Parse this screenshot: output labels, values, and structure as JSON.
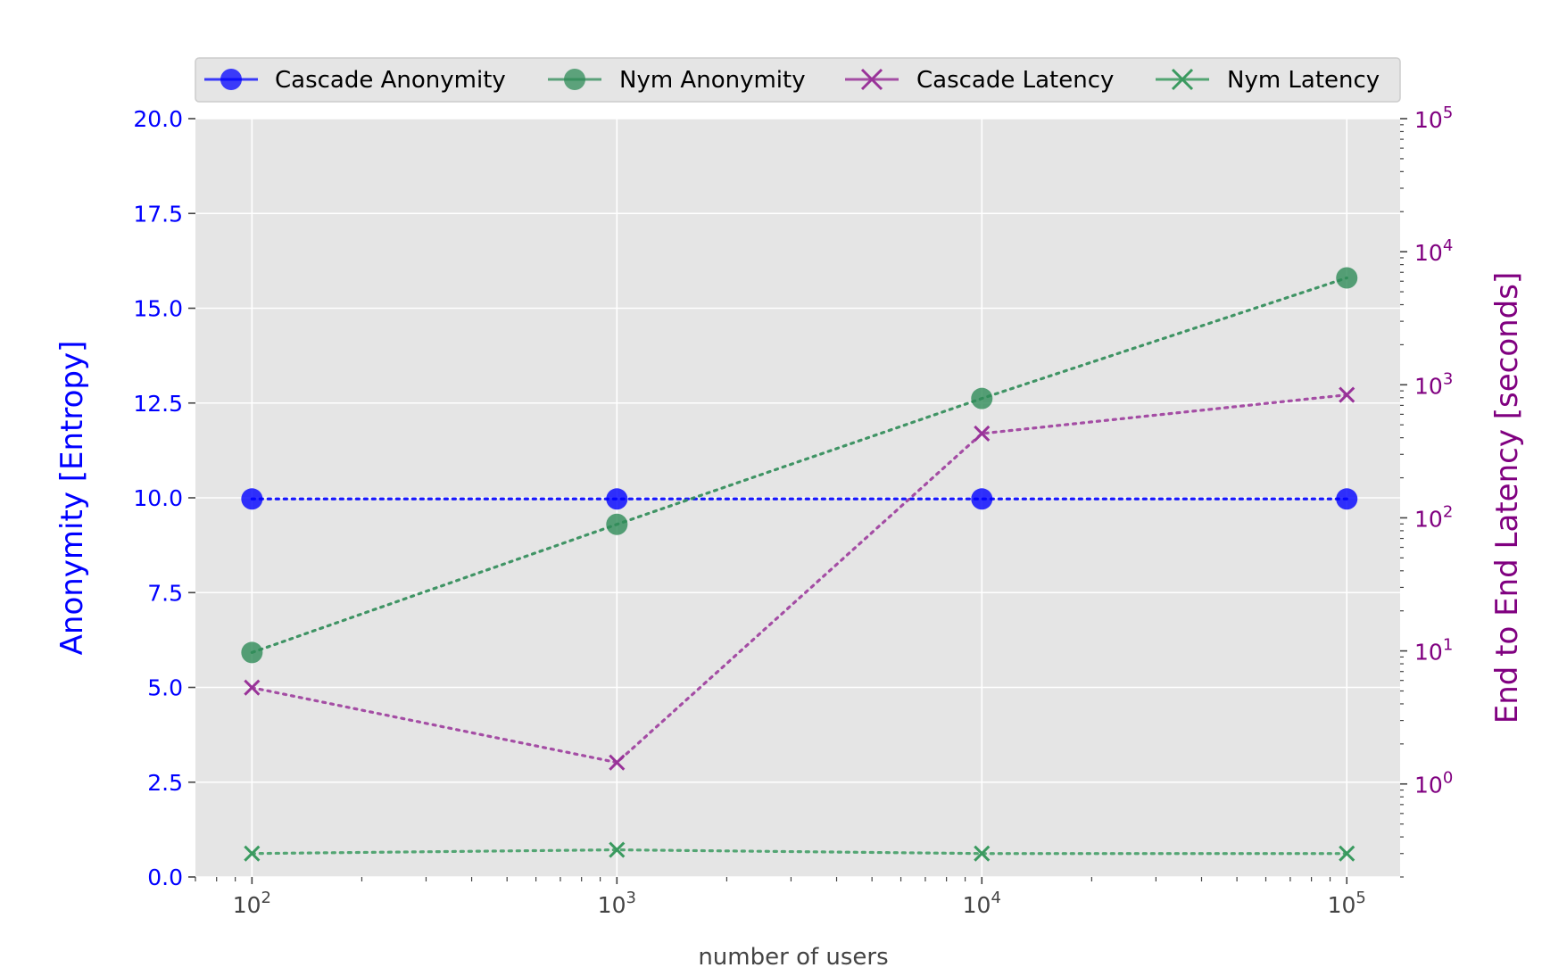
{
  "chart_data": {
    "type": "line",
    "xlabel": "number of users",
    "x_scale": "log",
    "x": [
      100,
      1000,
      10000,
      100000
    ],
    "x_ticks": [
      {
        "value": 100,
        "base": "10",
        "exp": "2"
      },
      {
        "value": 1000,
        "base": "10",
        "exp": "3"
      },
      {
        "value": 10000,
        "base": "10",
        "exp": "4"
      },
      {
        "value": 100000,
        "base": "10",
        "exp": "5"
      }
    ],
    "y_left": {
      "label": "Anonymity [Entropy]",
      "scale": "linear",
      "lim": [
        0,
        20
      ],
      "ticks": [
        "0.0",
        "2.5",
        "5.0",
        "7.5",
        "10.0",
        "12.5",
        "15.0",
        "17.5",
        "20.0"
      ],
      "color": "#0000ff"
    },
    "y_right": {
      "label": "End to End Latency [seconds]",
      "scale": "log",
      "lim": [
        0.2,
        100000
      ],
      "ticks": [
        {
          "value": 1,
          "base": "10",
          "exp": "0"
        },
        {
          "value": 10,
          "base": "10",
          "exp": "1"
        },
        {
          "value": 100,
          "base": "10",
          "exp": "2"
        },
        {
          "value": 1000,
          "base": "10",
          "exp": "3"
        },
        {
          "value": 10000,
          "base": "10",
          "exp": "4"
        },
        {
          "value": 100000,
          "base": "10",
          "exp": "5"
        }
      ],
      "color": "#800080"
    },
    "series": [
      {
        "name": "Cascade Anonymity",
        "axis": "left",
        "marker": "circle",
        "color": "#0000ff",
        "values": [
          9.97,
          9.97,
          9.97,
          9.97
        ]
      },
      {
        "name": "Nym Anonymity",
        "axis": "left",
        "marker": "circle",
        "color": "#2e8b57",
        "values": [
          5.92,
          9.3,
          12.62,
          15.8
        ]
      },
      {
        "name": "Cascade Latency",
        "axis": "right",
        "marker": "x",
        "color": "#993399",
        "values": [
          5.3,
          1.45,
          430,
          840
        ]
      },
      {
        "name": "Nym Latency",
        "axis": "right",
        "marker": "x",
        "color": "#3a9a5f",
        "values": [
          0.3,
          0.32,
          0.3,
          0.3
        ]
      }
    ],
    "grid": true,
    "legend": "top-center",
    "background": "#e5e5e5"
  }
}
